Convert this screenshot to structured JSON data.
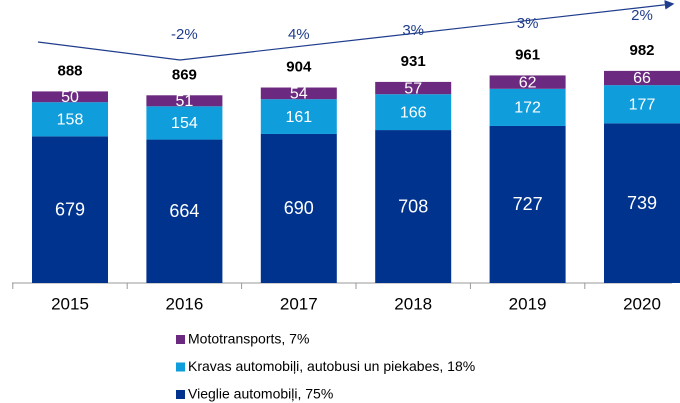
{
  "chart_data": {
    "type": "stacked-bar",
    "categories": [
      "2015",
      "2016",
      "2017",
      "2018",
      "2019",
      "2020"
    ],
    "series": [
      {
        "name": "Vieglie automobiļi, 75%",
        "color": "#00338d",
        "values": [
          679,
          664,
          690,
          708,
          727,
          739
        ]
      },
      {
        "name": "Kravas automobiļi, autobusi un piekabes, 18%",
        "color": "#0f9ddb",
        "values": [
          158,
          154,
          161,
          166,
          172,
          177
        ]
      },
      {
        "name": "Mototransports, 7%",
        "color": "#6b2a7f",
        "values": [
          50,
          51,
          54,
          57,
          62,
          66
        ]
      }
    ],
    "totals": [
      888,
      869,
      904,
      931,
      961,
      982
    ],
    "growth": {
      "values": [
        -2,
        4,
        3,
        3,
        2
      ],
      "value_labels": [
        "-2%",
        "4%",
        "3%",
        "3%",
        "2%"
      ]
    },
    "ylim": [
      0,
      1000
    ]
  }
}
